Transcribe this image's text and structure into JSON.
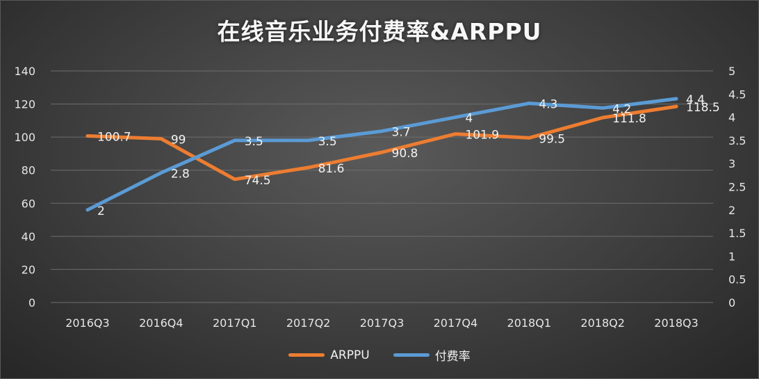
{
  "chart_data": {
    "type": "line",
    "title": "在线音乐业务付费率&ARPPU",
    "categories": [
      "2016Q3",
      "2016Q4",
      "2017Q1",
      "2017Q2",
      "2017Q3",
      "2017Q4",
      "2018Q1",
      "2018Q2",
      "2018Q3"
    ],
    "series": [
      {
        "name": "ARPPU",
        "axis": "left",
        "color": "#ED7D31",
        "values": [
          100.7,
          99,
          74.5,
          81.6,
          90.8,
          101.9,
          99.5,
          111.8,
          118.5
        ],
        "labels": [
          "100.7",
          "99",
          "74.5",
          "81.6",
          "90.8",
          "101.9",
          "99.5",
          "111.8",
          "118.5"
        ]
      },
      {
        "name": "付费率",
        "axis": "right",
        "color": "#5B9BD5",
        "values": [
          2,
          2.8,
          3.5,
          3.5,
          3.7,
          4,
          4.3,
          4.2,
          4.4
        ],
        "labels": [
          "2",
          "2.8",
          "3.5",
          "3.5",
          "3.7",
          "4",
          "4.3",
          "4.2",
          "4.4"
        ]
      }
    ],
    "y_left": {
      "min": 0,
      "max": 140,
      "ticks": [
        0,
        20,
        40,
        60,
        80,
        100,
        120,
        140
      ],
      "tick_labels": [
        "0",
        "20",
        "40",
        "60",
        "80",
        "100",
        "120",
        "140"
      ]
    },
    "y_right": {
      "min": 0,
      "max": 5,
      "ticks": [
        0,
        0.5,
        1,
        1.5,
        2,
        2.5,
        3,
        3.5,
        4,
        4.5,
        5
      ],
      "tick_labels": [
        "0",
        "0.5",
        "1",
        "1.5",
        "2",
        "2.5",
        "3",
        "3.5",
        "4",
        "4.5",
        "5"
      ]
    },
    "xlabel": "",
    "ylabel": "",
    "grid": true,
    "legend_position": "bottom"
  }
}
